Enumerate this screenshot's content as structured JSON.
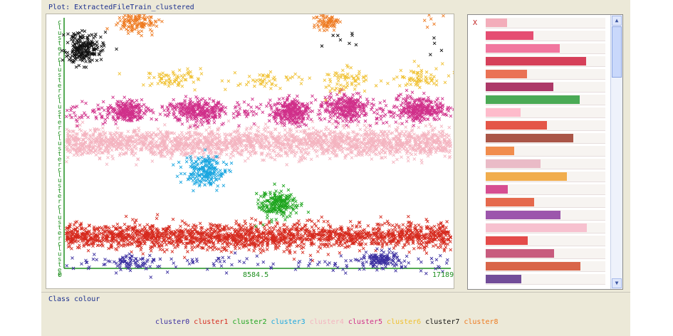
{
  "plot": {
    "title": "Plot: ExtractedFileTrain_clustered",
    "x_ticks": [
      "0",
      "8584.5",
      "17189"
    ],
    "y_axis_letters": [
      "c",
      "l",
      "u",
      "s",
      "t",
      "e",
      "r",
      "c",
      "l",
      "u",
      "s",
      "t",
      "e",
      "r",
      "c",
      "l",
      "u",
      "s",
      "t",
      "e",
      "r",
      "c",
      "l",
      "u",
      "s",
      "t",
      "e",
      "r",
      "c",
      "l",
      "u",
      "s",
      "t",
      "e",
      "r",
      "c",
      "l",
      "u",
      "s",
      "t",
      "e",
      "r",
      "c",
      "l",
      "u",
      "s",
      "t",
      "e",
      "r"
    ]
  },
  "side": {
    "close_label": "X",
    "row_colors": [
      "#f2a0b0",
      "#e2305c",
      "#f06090",
      "#d02040",
      "#e85a3a",
      "#a01850",
      "#2c9c3a",
      "#ffb0c4",
      "#e03a2a",
      "#9c3a2a",
      "#f07a30",
      "#e8b0c0",
      "#f0a030",
      "#d03080",
      "#e25030",
      "#8c3aa0",
      "#f7b7c9",
      "#e02d2d",
      "#c0406a",
      "#d34b2c",
      "#5a2f8a"
    ]
  },
  "class_colour": {
    "label": "Class colour",
    "items": [
      {
        "name": "cluster0",
        "color": "#3b2fa0"
      },
      {
        "name": "cluster1",
        "color": "#d62a1e"
      },
      {
        "name": "cluster2",
        "color": "#1ea51e"
      },
      {
        "name": "cluster3",
        "color": "#1aa6e0"
      },
      {
        "name": "cluster4",
        "color": "#f4b4c0"
      },
      {
        "name": "cluster5",
        "color": "#d0308a"
      },
      {
        "name": "cluster6",
        "color": "#f0c030"
      },
      {
        "name": "cluster7",
        "color": "#111111"
      },
      {
        "name": "cluster8",
        "color": "#ee7a20"
      }
    ]
  },
  "chart_data": {
    "type": "scatter",
    "xlim": [
      0,
      17189
    ],
    "series": [
      {
        "name": "cluster0",
        "values_desc": "scattered points along bottom band"
      },
      {
        "name": "cluster1",
        "values_desc": "dense horizontal band near bottom"
      },
      {
        "name": "cluster2",
        "values_desc": "small cluster mid-lower"
      },
      {
        "name": "cluster3",
        "values_desc": "small cluster mid-left"
      },
      {
        "name": "cluster4",
        "values_desc": "dense horizontal band in middle"
      },
      {
        "name": "cluster5",
        "values_desc": "band of clumps above middle"
      },
      {
        "name": "cluster6",
        "values_desc": "sparse clumps near top"
      },
      {
        "name": "cluster7",
        "values_desc": "cluster at top-left"
      },
      {
        "name": "cluster8",
        "values_desc": "clumps at very top"
      }
    ]
  }
}
